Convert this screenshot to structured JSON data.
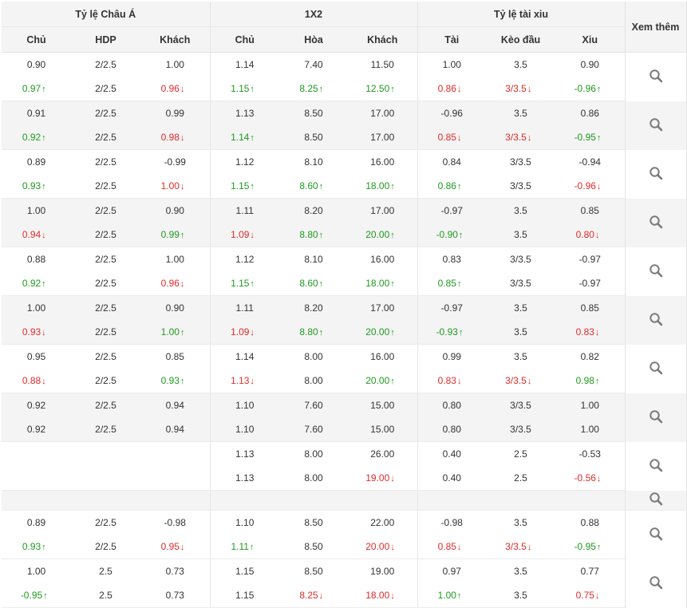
{
  "headers": {
    "group_asian": "Tỷ lệ Châu Á",
    "group_1x2": "1X2",
    "group_ou": "Tỷ lệ tài xiu",
    "see_more": "Xem thêm",
    "asian_home": "Chủ",
    "asian_hdp": "HDP",
    "asian_away": "Khách",
    "x12_home": "Chủ",
    "x12_draw": "Hòa",
    "x12_away": "Khách",
    "ou_over": "Tài",
    "ou_line": "Kèo đầu",
    "ou_under": "Xiu"
  },
  "colors": {
    "up": "#1f9a1f",
    "down": "#e02b2b",
    "header_bg": "#f4f4f4",
    "stripe_bg": "#f4f4f4"
  },
  "icons": {
    "view": "magnifier-icon",
    "up": "arrow-up-icon",
    "down": "arrow-down-icon"
  },
  "groups": [
    {
      "shaded": false,
      "rows": [
        [
          {
            "v": "0.90"
          },
          {
            "v": "2/2.5"
          },
          {
            "v": "1.00"
          },
          {
            "v": "1.14"
          },
          {
            "v": "7.40"
          },
          {
            "v": "11.50"
          },
          {
            "v": "1.00"
          },
          {
            "v": "3.5"
          },
          {
            "v": "0.90"
          }
        ],
        [
          {
            "v": "0.97",
            "t": "up"
          },
          {
            "v": "2/2.5"
          },
          {
            "v": "0.96",
            "t": "down"
          },
          {
            "v": "1.15",
            "t": "up"
          },
          {
            "v": "8.25",
            "t": "up"
          },
          {
            "v": "12.50",
            "t": "up"
          },
          {
            "v": "0.86",
            "t": "down"
          },
          {
            "v": "3/3.5",
            "t": "down"
          },
          {
            "v": "-0.96",
            "t": "up"
          }
        ]
      ]
    },
    {
      "shaded": true,
      "rows": [
        [
          {
            "v": "0.91"
          },
          {
            "v": "2/2.5"
          },
          {
            "v": "0.99"
          },
          {
            "v": "1.13"
          },
          {
            "v": "8.50"
          },
          {
            "v": "17.00"
          },
          {
            "v": "-0.96"
          },
          {
            "v": "3.5"
          },
          {
            "v": "0.86"
          }
        ],
        [
          {
            "v": "0.92",
            "t": "up"
          },
          {
            "v": "2/2.5"
          },
          {
            "v": "0.98",
            "t": "down"
          },
          {
            "v": "1.14",
            "t": "up"
          },
          {
            "v": "8.50"
          },
          {
            "v": "17.00"
          },
          {
            "v": "0.85",
            "t": "down"
          },
          {
            "v": "3/3.5",
            "t": "down"
          },
          {
            "v": "-0.95",
            "t": "up"
          }
        ]
      ]
    },
    {
      "shaded": false,
      "rows": [
        [
          {
            "v": "0.89"
          },
          {
            "v": "2/2.5"
          },
          {
            "v": "-0.99"
          },
          {
            "v": "1.12"
          },
          {
            "v": "8.10"
          },
          {
            "v": "16.00"
          },
          {
            "v": "0.84"
          },
          {
            "v": "3/3.5"
          },
          {
            "v": "-0.94"
          }
        ],
        [
          {
            "v": "0.93",
            "t": "up"
          },
          {
            "v": "2/2.5"
          },
          {
            "v": "1.00",
            "t": "down"
          },
          {
            "v": "1.15",
            "t": "up"
          },
          {
            "v": "8.60",
            "t": "up"
          },
          {
            "v": "18.00",
            "t": "up"
          },
          {
            "v": "0.86",
            "t": "up"
          },
          {
            "v": "3/3.5"
          },
          {
            "v": "-0.96",
            "t": "down"
          }
        ]
      ]
    },
    {
      "shaded": true,
      "rows": [
        [
          {
            "v": "1.00"
          },
          {
            "v": "2/2.5"
          },
          {
            "v": "0.90"
          },
          {
            "v": "1.11"
          },
          {
            "v": "8.20"
          },
          {
            "v": "17.00"
          },
          {
            "v": "-0.97"
          },
          {
            "v": "3.5"
          },
          {
            "v": "0.85"
          }
        ],
        [
          {
            "v": "0.94",
            "t": "down"
          },
          {
            "v": "2/2.5"
          },
          {
            "v": "0.99",
            "t": "up"
          },
          {
            "v": "1.09",
            "t": "down"
          },
          {
            "v": "8.80",
            "t": "up"
          },
          {
            "v": "20.00",
            "t": "up"
          },
          {
            "v": "-0.90",
            "t": "up"
          },
          {
            "v": "3.5"
          },
          {
            "v": "0.80",
            "t": "down"
          }
        ]
      ]
    },
    {
      "shaded": false,
      "rows": [
        [
          {
            "v": "0.88"
          },
          {
            "v": "2/2.5"
          },
          {
            "v": "1.00"
          },
          {
            "v": "1.12"
          },
          {
            "v": "8.10"
          },
          {
            "v": "16.00"
          },
          {
            "v": "0.83"
          },
          {
            "v": "3/3.5"
          },
          {
            "v": "-0.97"
          }
        ],
        [
          {
            "v": "0.92",
            "t": "up"
          },
          {
            "v": "2/2.5"
          },
          {
            "v": "0.96",
            "t": "down"
          },
          {
            "v": "1.15",
            "t": "up"
          },
          {
            "v": "8.60",
            "t": "up"
          },
          {
            "v": "18.00",
            "t": "up"
          },
          {
            "v": "0.85",
            "t": "up"
          },
          {
            "v": "3/3.5"
          },
          {
            "v": "-0.97"
          }
        ]
      ]
    },
    {
      "shaded": true,
      "rows": [
        [
          {
            "v": "1.00"
          },
          {
            "v": "2/2.5"
          },
          {
            "v": "0.90"
          },
          {
            "v": "1.11"
          },
          {
            "v": "8.20"
          },
          {
            "v": "17.00"
          },
          {
            "v": "-0.97"
          },
          {
            "v": "3.5"
          },
          {
            "v": "0.85"
          }
        ],
        [
          {
            "v": "0.93",
            "t": "down"
          },
          {
            "v": "2/2.5"
          },
          {
            "v": "1.00",
            "t": "up"
          },
          {
            "v": "1.09",
            "t": "down"
          },
          {
            "v": "8.80",
            "t": "up"
          },
          {
            "v": "20.00",
            "t": "up"
          },
          {
            "v": "-0.93",
            "t": "up"
          },
          {
            "v": "3.5"
          },
          {
            "v": "0.83",
            "t": "down"
          }
        ]
      ]
    },
    {
      "shaded": false,
      "rows": [
        [
          {
            "v": "0.95"
          },
          {
            "v": "2/2.5"
          },
          {
            "v": "0.85"
          },
          {
            "v": "1.14"
          },
          {
            "v": "8.00"
          },
          {
            "v": "16.00"
          },
          {
            "v": "0.99"
          },
          {
            "v": "3.5"
          },
          {
            "v": "0.82"
          }
        ],
        [
          {
            "v": "0.88",
            "t": "down"
          },
          {
            "v": "2/2.5"
          },
          {
            "v": "0.93",
            "t": "up"
          },
          {
            "v": "1.13",
            "t": "down"
          },
          {
            "v": "8.00"
          },
          {
            "v": "20.00",
            "t": "up"
          },
          {
            "v": "0.83",
            "t": "down"
          },
          {
            "v": "3/3.5",
            "t": "down"
          },
          {
            "v": "0.98",
            "t": "up"
          }
        ]
      ]
    },
    {
      "shaded": true,
      "rows": [
        [
          {
            "v": "0.92"
          },
          {
            "v": "2/2.5"
          },
          {
            "v": "0.94"
          },
          {
            "v": "1.10"
          },
          {
            "v": "7.60"
          },
          {
            "v": "15.00"
          },
          {
            "v": "0.80"
          },
          {
            "v": "3/3.5"
          },
          {
            "v": "1.00"
          }
        ],
        [
          {
            "v": "0.92"
          },
          {
            "v": "2/2.5"
          },
          {
            "v": "0.94"
          },
          {
            "v": "1.10"
          },
          {
            "v": "7.60"
          },
          {
            "v": "15.00"
          },
          {
            "v": "0.80"
          },
          {
            "v": "3/3.5"
          },
          {
            "v": "1.00"
          }
        ]
      ]
    },
    {
      "shaded": false,
      "rows": [
        [
          {
            "v": ""
          },
          {
            "v": ""
          },
          {
            "v": ""
          },
          {
            "v": "1.13"
          },
          {
            "v": "8.00"
          },
          {
            "v": "26.00"
          },
          {
            "v": "0.40"
          },
          {
            "v": "2.5"
          },
          {
            "v": "-0.53"
          }
        ],
        [
          {
            "v": ""
          },
          {
            "v": ""
          },
          {
            "v": ""
          },
          {
            "v": "1.13"
          },
          {
            "v": "8.00"
          },
          {
            "v": "19.00",
            "t": "down"
          },
          {
            "v": "0.40"
          },
          {
            "v": "2.5"
          },
          {
            "v": "-0.56",
            "t": "down"
          }
        ]
      ]
    },
    {
      "shaded": true,
      "gap": true,
      "rows": []
    },
    {
      "shaded": false,
      "rows": [
        [
          {
            "v": "0.89"
          },
          {
            "v": "2/2.5"
          },
          {
            "v": "-0.98"
          },
          {
            "v": "1.10"
          },
          {
            "v": "8.50"
          },
          {
            "v": "22.00"
          },
          {
            "v": "-0.98"
          },
          {
            "v": "3.5"
          },
          {
            "v": "0.88"
          }
        ],
        [
          {
            "v": "0.93",
            "t": "up"
          },
          {
            "v": "2/2.5"
          },
          {
            "v": "0.95",
            "t": "down"
          },
          {
            "v": "1.11",
            "t": "up"
          },
          {
            "v": "8.50"
          },
          {
            "v": "20.00",
            "t": "down"
          },
          {
            "v": "0.85",
            "t": "down"
          },
          {
            "v": "3/3.5",
            "t": "down"
          },
          {
            "v": "-0.95",
            "t": "up"
          }
        ]
      ]
    },
    {
      "shaded": false,
      "rows": [
        [
          {
            "v": "1.00"
          },
          {
            "v": "2.5"
          },
          {
            "v": "0.73"
          },
          {
            "v": "1.15"
          },
          {
            "v": "8.50"
          },
          {
            "v": "19.00"
          },
          {
            "v": "0.97"
          },
          {
            "v": "3.5"
          },
          {
            "v": "0.77"
          }
        ],
        [
          {
            "v": "-0.95",
            "t": "up"
          },
          {
            "v": "2.5"
          },
          {
            "v": "0.73"
          },
          {
            "v": "1.15"
          },
          {
            "v": "8.25",
            "t": "down"
          },
          {
            "v": "18.00",
            "t": "down"
          },
          {
            "v": "1.00",
            "t": "up"
          },
          {
            "v": "3.5"
          },
          {
            "v": "0.75",
            "t": "down"
          }
        ]
      ]
    }
  ]
}
